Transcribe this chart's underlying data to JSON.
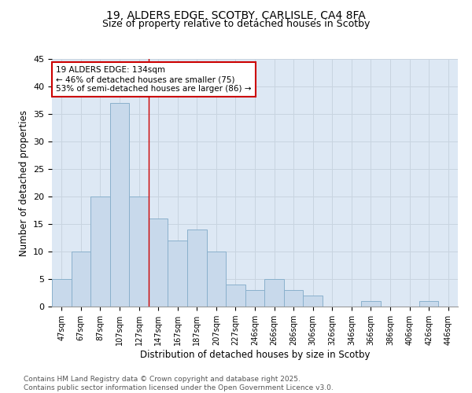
{
  "title_line1": "19, ALDERS EDGE, SCOTBY, CARLISLE, CA4 8FA",
  "title_line2": "Size of property relative to detached houses in Scotby",
  "xlabel": "Distribution of detached houses by size in Scotby",
  "ylabel": "Number of detached properties",
  "categories": [
    "47sqm",
    "67sqm",
    "87sqm",
    "107sqm",
    "127sqm",
    "147sqm",
    "167sqm",
    "187sqm",
    "207sqm",
    "227sqm",
    "246sqm",
    "266sqm",
    "286sqm",
    "306sqm",
    "326sqm",
    "346sqm",
    "366sqm",
    "386sqm",
    "406sqm",
    "426sqm",
    "446sqm"
  ],
  "values": [
    5,
    10,
    20,
    37,
    20,
    16,
    12,
    14,
    10,
    4,
    3,
    5,
    3,
    2,
    0,
    0,
    1,
    0,
    0,
    1,
    0
  ],
  "bar_color": "#c8d9eb",
  "bar_edge_color": "#8ab0cc",
  "grid_color": "#c8d4e0",
  "background_color": "#dde8f4",
  "annotation_box_color": "#ffffff",
  "annotation_border_color": "#cc0000",
  "red_line_x": 4.5,
  "red_line_color": "#cc0000",
  "annotation_text_line1": "19 ALDERS EDGE: 134sqm",
  "annotation_text_line2": "← 46% of detached houses are smaller (75)",
  "annotation_text_line3": "53% of semi-detached houses are larger (86) →",
  "ylim": [
    0,
    45
  ],
  "yticks": [
    0,
    5,
    10,
    15,
    20,
    25,
    30,
    35,
    40,
    45
  ],
  "footer_line1": "Contains HM Land Registry data © Crown copyright and database right 2025.",
  "footer_line2": "Contains public sector information licensed under the Open Government Licence v3.0.",
  "title_fontsize": 10,
  "subtitle_fontsize": 9,
  "tick_fontsize": 7,
  "label_fontsize": 8.5,
  "footer_fontsize": 6.5,
  "annotation_fontsize": 7.5
}
